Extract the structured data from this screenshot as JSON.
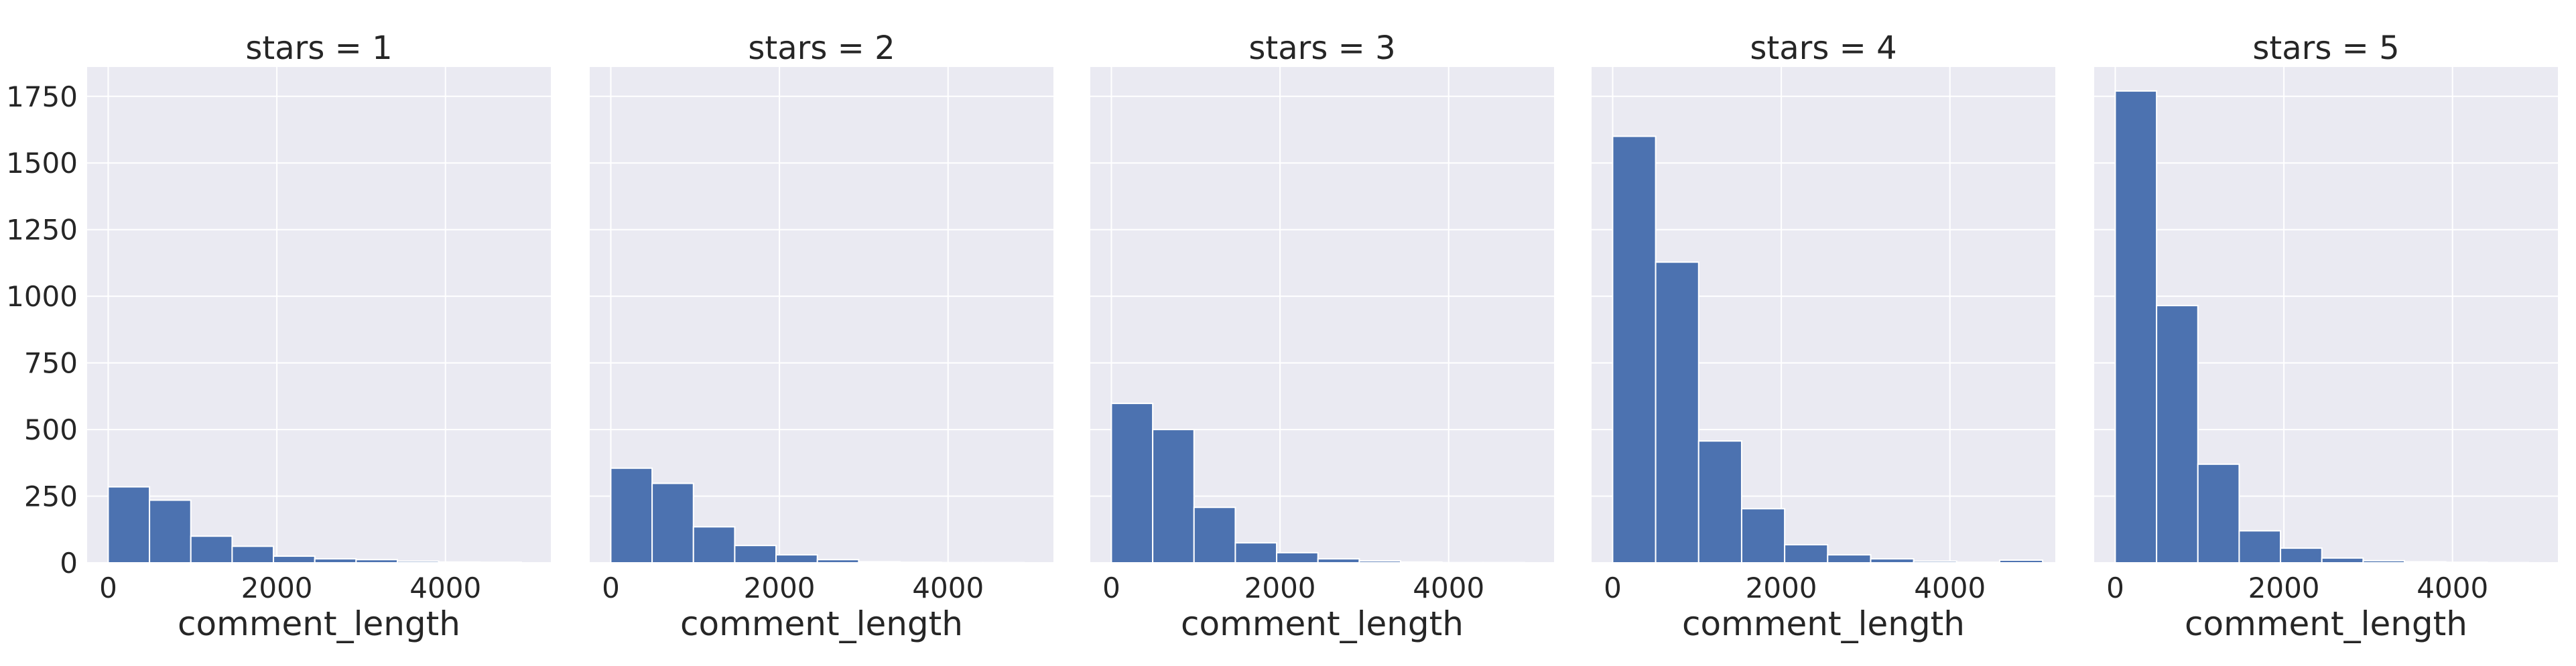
{
  "chart_data": {
    "type": "bar",
    "subtype": "histogram-facets",
    "facet_variable": "stars",
    "x_label": "comment_length",
    "y_label": "",
    "x_ticks": [
      0,
      2000,
      4000
    ],
    "y_ticks": [
      0,
      250,
      500,
      750,
      1000,
      1250,
      1500,
      1750
    ],
    "xlim": [
      -250,
      5250
    ],
    "ylim": [
      0,
      1860
    ],
    "grid": true,
    "bar_color": "#4c72b0",
    "panel_background": "#eaeaf2",
    "panels": [
      {
        "title": "stars = 1",
        "bins": [
          {
            "x0": 0,
            "x1": 490,
            "count": 285
          },
          {
            "x0": 490,
            "x1": 980,
            "count": 235
          },
          {
            "x0": 980,
            "x1": 1470,
            "count": 100
          },
          {
            "x0": 1470,
            "x1": 1960,
            "count": 62
          },
          {
            "x0": 1960,
            "x1": 2450,
            "count": 25
          },
          {
            "x0": 2450,
            "x1": 2940,
            "count": 15
          },
          {
            "x0": 2940,
            "x1": 3430,
            "count": 12
          },
          {
            "x0": 3430,
            "x1": 3920,
            "count": 6
          },
          {
            "x0": 3920,
            "x1": 4410,
            "count": 3
          },
          {
            "x0": 4410,
            "x1": 4900,
            "count": 2
          }
        ]
      },
      {
        "title": "stars = 2",
        "bins": [
          {
            "x0": 0,
            "x1": 490,
            "count": 355
          },
          {
            "x0": 490,
            "x1": 980,
            "count": 298
          },
          {
            "x0": 980,
            "x1": 1470,
            "count": 135
          },
          {
            "x0": 1470,
            "x1": 1960,
            "count": 65
          },
          {
            "x0": 1960,
            "x1": 2450,
            "count": 30
          },
          {
            "x0": 2450,
            "x1": 2940,
            "count": 12
          },
          {
            "x0": 2940,
            "x1": 3430,
            "count": 4
          },
          {
            "x0": 3430,
            "x1": 3920,
            "count": 2
          },
          {
            "x0": 3920,
            "x1": 4410,
            "count": 1
          },
          {
            "x0": 4410,
            "x1": 4900,
            "count": 1
          }
        ]
      },
      {
        "title": "stars = 3",
        "bins": [
          {
            "x0": 0,
            "x1": 490,
            "count": 598
          },
          {
            "x0": 490,
            "x1": 980,
            "count": 500
          },
          {
            "x0": 980,
            "x1": 1470,
            "count": 208
          },
          {
            "x0": 1470,
            "x1": 1960,
            "count": 75
          },
          {
            "x0": 1960,
            "x1": 2450,
            "count": 38
          },
          {
            "x0": 2450,
            "x1": 2940,
            "count": 15
          },
          {
            "x0": 2940,
            "x1": 3430,
            "count": 7
          },
          {
            "x0": 3430,
            "x1": 3920,
            "count": 3
          },
          {
            "x0": 3920,
            "x1": 4410,
            "count": 1
          },
          {
            "x0": 4410,
            "x1": 4900,
            "count": 1
          }
        ]
      },
      {
        "title": "stars = 4",
        "bins": [
          {
            "x0": 0,
            "x1": 510,
            "count": 1600
          },
          {
            "x0": 510,
            "x1": 1020,
            "count": 1128
          },
          {
            "x0": 1020,
            "x1": 1530,
            "count": 457
          },
          {
            "x0": 1530,
            "x1": 2040,
            "count": 203
          },
          {
            "x0": 2040,
            "x1": 2550,
            "count": 68
          },
          {
            "x0": 2550,
            "x1": 3060,
            "count": 30
          },
          {
            "x0": 3060,
            "x1": 3570,
            "count": 15
          },
          {
            "x0": 3570,
            "x1": 4080,
            "count": 6
          },
          {
            "x0": 4080,
            "x1": 4590,
            "count": 2
          },
          {
            "x0": 4590,
            "x1": 5100,
            "count": 10
          }
        ]
      },
      {
        "title": "stars = 5",
        "bins": [
          {
            "x0": 0,
            "x1": 490,
            "count": 1770
          },
          {
            "x0": 490,
            "x1": 980,
            "count": 965
          },
          {
            "x0": 980,
            "x1": 1470,
            "count": 370
          },
          {
            "x0": 1470,
            "x1": 1960,
            "count": 120
          },
          {
            "x0": 1960,
            "x1": 2450,
            "count": 55
          },
          {
            "x0": 2450,
            "x1": 2940,
            "count": 18
          },
          {
            "x0": 2940,
            "x1": 3430,
            "count": 8
          },
          {
            "x0": 3430,
            "x1": 3920,
            "count": 4
          },
          {
            "x0": 3920,
            "x1": 4410,
            "count": 2
          },
          {
            "x0": 4410,
            "x1": 4900,
            "count": 1
          }
        ]
      }
    ]
  }
}
